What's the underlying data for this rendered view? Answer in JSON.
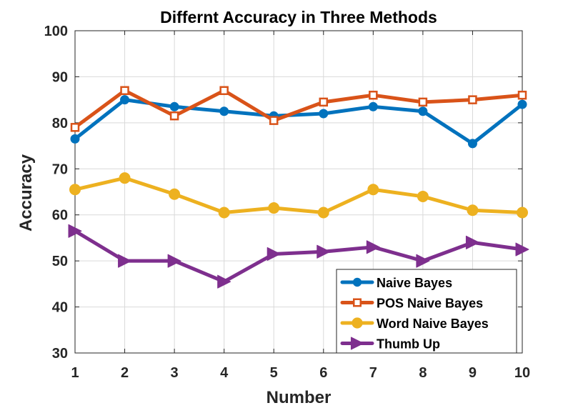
{
  "chart_data": {
    "type": "line",
    "title": "Differnt Accuracy in Three Methods",
    "xlabel": "Number",
    "ylabel": "Accuracy",
    "x": [
      1,
      2,
      3,
      4,
      5,
      6,
      7,
      8,
      9,
      10
    ],
    "xlim": [
      1,
      10
    ],
    "ylim": [
      30,
      100
    ],
    "xticks": [
      1,
      2,
      3,
      4,
      5,
      6,
      7,
      8,
      9,
      10
    ],
    "yticks": [
      30,
      40,
      50,
      60,
      70,
      80,
      90,
      100
    ],
    "grid": true,
    "legend_position": "bottom-right",
    "series": [
      {
        "name": "Naive Bayes",
        "color": "#0072BD",
        "marker": "circle",
        "values": [
          76.5,
          85,
          83.5,
          82.5,
          81.5,
          82,
          83.5,
          82.5,
          75.5,
          84
        ]
      },
      {
        "name": "POS Naive Bayes",
        "color": "#D95319",
        "marker": "square",
        "values": [
          79,
          87,
          81.5,
          87,
          80.5,
          84.5,
          86,
          84.5,
          85,
          86
        ]
      },
      {
        "name": "Word Naive Bayes",
        "color": "#EDB120",
        "marker": "circle-large",
        "values": [
          65.5,
          68,
          64.5,
          60.5,
          61.5,
          60.5,
          65.5,
          64,
          61,
          60.5
        ]
      },
      {
        "name": "Thumb Up",
        "color": "#7E2F8E",
        "marker": "triangle-right",
        "values": [
          56.5,
          50,
          50,
          45.5,
          51.5,
          52,
          53,
          50,
          54,
          52.5
        ]
      }
    ]
  }
}
